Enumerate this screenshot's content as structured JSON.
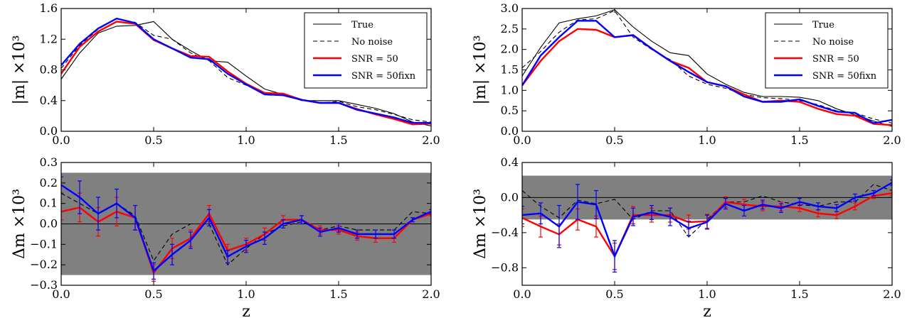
{
  "chart_data": [
    {
      "type": "line",
      "panel": "top-left",
      "xlabel": "",
      "ylabel": "|m| ×10³",
      "xlim": [
        0,
        2
      ],
      "ylim": [
        0,
        1.6
      ],
      "xticks": [
        "0.0",
        "0.5",
        "1.0",
        "1.5",
        "2.0"
      ],
      "yticks": [
        "0.0",
        "0.4",
        "0.8",
        "1.2",
        "1.6"
      ],
      "legend_position": "top-right",
      "legend": [
        "True",
        "No noise",
        "SNR = 50",
        "SNR = 50fixn"
      ],
      "series": [
        {
          "name": "True",
          "color": "#000000",
          "style": "solid",
          "x": [
            0,
            0.1,
            0.2,
            0.3,
            0.4,
            0.5,
            0.6,
            0.7,
            0.8,
            0.9,
            1.0,
            1.1,
            1.2,
            1.3,
            1.4,
            1.5,
            1.6,
            1.7,
            1.8,
            1.9,
            2.0
          ],
          "y": [
            0.68,
            1.02,
            1.28,
            1.37,
            1.38,
            1.43,
            1.2,
            1.05,
            0.92,
            0.9,
            0.72,
            0.55,
            0.48,
            0.4,
            0.4,
            0.4,
            0.35,
            0.3,
            0.23,
            0.12,
            0.07
          ]
        },
        {
          "name": "No noise",
          "color": "#000000",
          "style": "dashed",
          "x": [
            0,
            0.1,
            0.2,
            0.3,
            0.4,
            0.5,
            0.6,
            0.7,
            0.8,
            0.9,
            1.0,
            1.1,
            1.2,
            1.3,
            1.4,
            1.5,
            1.6,
            1.7,
            1.8,
            1.9,
            2.0
          ],
          "y": [
            0.82,
            1.12,
            1.33,
            1.47,
            1.42,
            1.25,
            1.2,
            1.02,
            0.92,
            0.7,
            0.6,
            0.5,
            0.47,
            0.41,
            0.37,
            0.39,
            0.32,
            0.28,
            0.22,
            0.15,
            0.12
          ]
        },
        {
          "name": "SNR = 50",
          "color": "#ff0000",
          "style": "solid",
          "x": [
            0,
            0.1,
            0.2,
            0.3,
            0.4,
            0.5,
            0.6,
            0.7,
            0.8,
            0.9,
            1.0,
            1.1,
            1.2,
            1.3,
            1.4,
            1.5,
            1.6,
            1.7,
            1.8,
            1.9,
            2.0
          ],
          "y": [
            0.75,
            1.1,
            1.3,
            1.43,
            1.4,
            1.19,
            1.08,
            0.98,
            0.97,
            0.78,
            0.62,
            0.5,
            0.49,
            0.41,
            0.37,
            0.37,
            0.29,
            0.22,
            0.16,
            0.09,
            0.1
          ]
        },
        {
          "name": "SNR = 50fixn",
          "color": "#0000ff",
          "style": "solid",
          "x": [
            0,
            0.1,
            0.2,
            0.3,
            0.4,
            0.5,
            0.6,
            0.7,
            0.8,
            0.9,
            1.0,
            1.1,
            1.2,
            1.3,
            1.4,
            1.5,
            1.6,
            1.7,
            1.8,
            1.9,
            2.0
          ],
          "y": [
            0.86,
            1.14,
            1.34,
            1.47,
            1.41,
            1.2,
            1.08,
            0.96,
            0.94,
            0.75,
            0.61,
            0.48,
            0.47,
            0.41,
            0.37,
            0.37,
            0.28,
            0.23,
            0.18,
            0.11,
            0.11
          ]
        }
      ]
    },
    {
      "type": "line",
      "panel": "top-right",
      "xlabel": "",
      "ylabel": "|m| ×10³",
      "xlim": [
        0,
        2
      ],
      "ylim": [
        0,
        3.0
      ],
      "xticks": [
        "0.0",
        "0.5",
        "1.0",
        "1.5",
        "2.0"
      ],
      "yticks": [
        "0.0",
        "0.5",
        "1.0",
        "1.5",
        "2.0",
        "2.5",
        "3.0"
      ],
      "legend_position": "top-right",
      "legend": [
        "True",
        "No noise",
        "SNR = 50",
        "SNR = 50fixn"
      ],
      "series": [
        {
          "name": "True",
          "color": "#000000",
          "style": "solid",
          "x": [
            0,
            0.1,
            0.2,
            0.3,
            0.4,
            0.5,
            0.6,
            0.7,
            0.8,
            0.9,
            1.0,
            1.1,
            1.2,
            1.3,
            1.4,
            1.5,
            1.6,
            1.7,
            1.8,
            1.9,
            2.0
          ],
          "y": [
            1.35,
            2.05,
            2.65,
            2.75,
            2.82,
            2.97,
            2.55,
            2.2,
            1.92,
            1.85,
            1.4,
            1.15,
            0.95,
            0.85,
            0.85,
            0.83,
            0.75,
            0.55,
            0.4,
            0.25,
            0.12
          ]
        },
        {
          "name": "No noise",
          "color": "#000000",
          "style": "dashed",
          "x": [
            0,
            0.1,
            0.2,
            0.3,
            0.4,
            0.5,
            0.6,
            0.7,
            0.8,
            0.9,
            1.0,
            1.1,
            1.2,
            1.3,
            1.4,
            1.5,
            1.6,
            1.7,
            1.8,
            1.9,
            2.0
          ],
          "y": [
            1.55,
            1.95,
            2.42,
            2.72,
            2.75,
            2.95,
            2.3,
            2.0,
            1.75,
            1.35,
            1.15,
            1.05,
            0.9,
            0.82,
            0.8,
            0.75,
            0.65,
            0.5,
            0.45,
            0.3,
            0.2
          ]
        },
        {
          "name": "SNR = 50",
          "color": "#ff0000",
          "style": "solid",
          "x": [
            0,
            0.1,
            0.2,
            0.3,
            0.4,
            0.5,
            0.6,
            0.7,
            0.8,
            0.9,
            1.0,
            1.1,
            1.2,
            1.3,
            1.4,
            1.5,
            1.6,
            1.7,
            1.8,
            1.9,
            2.0
          ],
          "y": [
            1.12,
            1.72,
            2.2,
            2.5,
            2.48,
            2.3,
            2.35,
            2.02,
            1.72,
            1.55,
            1.2,
            1.1,
            0.9,
            0.72,
            0.75,
            0.72,
            0.55,
            0.42,
            0.38,
            0.18,
            0.15
          ]
        },
        {
          "name": "SNR = 50fixn",
          "color": "#0000ff",
          "style": "solid",
          "x": [
            0,
            0.1,
            0.2,
            0.3,
            0.4,
            0.5,
            0.6,
            0.7,
            0.8,
            0.9,
            1.0,
            1.1,
            1.2,
            1.3,
            1.4,
            1.5,
            1.6,
            1.7,
            1.8,
            1.9,
            2.0
          ],
          "y": [
            1.12,
            1.85,
            2.3,
            2.7,
            2.7,
            2.3,
            2.35,
            2.02,
            1.72,
            1.45,
            1.2,
            1.1,
            0.85,
            0.72,
            0.72,
            0.78,
            0.62,
            0.48,
            0.45,
            0.2,
            0.28
          ]
        }
      ]
    },
    {
      "type": "line",
      "panel": "bottom-left",
      "xlabel": "z",
      "ylabel": "Δm ×10³",
      "xlim": [
        0,
        2
      ],
      "ylim": [
        -0.3,
        0.3
      ],
      "xticks": [
        "0.0",
        "0.5",
        "1.0",
        "1.5",
        "2.0"
      ],
      "yticks": [
        "-0.3",
        "-0.2",
        "-0.1",
        "0.0",
        "0.1",
        "0.2",
        "0.3"
      ],
      "band": [
        -0.25,
        0.25
      ],
      "band_color": "#808080",
      "zero_line": true,
      "series": [
        {
          "name": "No noise",
          "color": "#000000",
          "style": "dashed",
          "x": [
            0,
            0.1,
            0.2,
            0.3,
            0.4,
            0.5,
            0.6,
            0.7,
            0.8,
            0.9,
            1.0,
            1.1,
            1.2,
            1.3,
            1.4,
            1.5,
            1.6,
            1.7,
            1.8,
            1.9,
            2.0
          ],
          "y": [
            0.15,
            0.1,
            0.05,
            0.1,
            0.04,
            -0.18,
            -0.05,
            0.0,
            0.0,
            -0.2,
            -0.12,
            -0.05,
            -0.01,
            0.01,
            -0.03,
            -0.01,
            -0.03,
            -0.03,
            -0.03,
            0.06,
            0.05
          ]
        },
        {
          "name": "SNR = 50",
          "color": "#ff0000",
          "style": "solid",
          "x": [
            0,
            0.1,
            0.2,
            0.3,
            0.4,
            0.5,
            0.6,
            0.7,
            0.8,
            0.9,
            1.0,
            1.1,
            1.2,
            1.3,
            1.4,
            1.5,
            1.6,
            1.7,
            1.8,
            1.9,
            2.0
          ],
          "y": [
            0.06,
            0.08,
            0.01,
            0.06,
            0.03,
            -0.24,
            -0.12,
            -0.07,
            0.05,
            -0.13,
            -0.1,
            -0.05,
            0.02,
            0.02,
            -0.03,
            -0.03,
            -0.06,
            -0.07,
            -0.07,
            0.02,
            0.05
          ],
          "err": [
            0.04,
            0.07,
            0.07,
            0.07,
            0.06,
            0.04,
            0.05,
            0.04,
            0.04,
            0.03,
            0.03,
            0.03,
            0.02,
            0.02,
            0.02,
            0.02,
            0.02,
            0.02,
            0.02,
            0.01,
            0.01
          ]
        },
        {
          "name": "SNR = 50fixn",
          "color": "#0000ff",
          "style": "solid",
          "x": [
            0,
            0.1,
            0.2,
            0.3,
            0.4,
            0.5,
            0.6,
            0.7,
            0.8,
            0.9,
            1.0,
            1.1,
            1.2,
            1.3,
            1.4,
            1.5,
            1.6,
            1.7,
            1.8,
            1.9,
            2.0
          ],
          "y": [
            0.19,
            0.13,
            0.05,
            0.1,
            0.03,
            -0.23,
            -0.15,
            -0.08,
            0.03,
            -0.16,
            -0.11,
            -0.07,
            0.0,
            0.02,
            -0.04,
            -0.02,
            -0.05,
            -0.05,
            -0.05,
            0.02,
            0.06
          ],
          "err": [
            0.04,
            0.08,
            0.08,
            0.07,
            0.06,
            0.04,
            0.05,
            0.04,
            0.04,
            0.03,
            0.03,
            0.03,
            0.02,
            0.02,
            0.02,
            0.02,
            0.02,
            0.02,
            0.02,
            0.01,
            0.01
          ]
        }
      ]
    },
    {
      "type": "line",
      "panel": "bottom-right",
      "xlabel": "z",
      "ylabel": "Δm ×10³",
      "xlim": [
        0,
        2
      ],
      "ylim": [
        -1.0,
        0.4
      ],
      "xticks": [
        "0.0",
        "0.5",
        "1.0",
        "1.5",
        "2.0"
      ],
      "yticks": [
        "-0.8",
        "-0.4",
        "0.0",
        "0.4"
      ],
      "band": [
        -0.25,
        0.25
      ],
      "band_color": "#808080",
      "zero_line": true,
      "series": [
        {
          "name": "No noise",
          "color": "#000000",
          "style": "dashed",
          "x": [
            0,
            0.1,
            0.2,
            0.3,
            0.4,
            0.5,
            0.6,
            0.7,
            0.8,
            0.9,
            1.0,
            1.1,
            1.2,
            1.3,
            1.4,
            1.5,
            1.6,
            1.7,
            1.8,
            1.9,
            2.0
          ],
          "y": [
            0.08,
            -0.1,
            -0.23,
            -0.03,
            -0.07,
            -0.02,
            -0.25,
            -0.15,
            -0.15,
            -0.45,
            -0.25,
            -0.05,
            -0.05,
            0.02,
            -0.05,
            -0.08,
            -0.1,
            -0.05,
            -0.05,
            0.15,
            0.08
          ]
        },
        {
          "name": "SNR = 50",
          "color": "#ff0000",
          "style": "solid",
          "x": [
            0,
            0.1,
            0.2,
            0.3,
            0.4,
            0.5,
            0.6,
            0.7,
            0.8,
            0.9,
            1.0,
            1.1,
            1.2,
            1.3,
            1.4,
            1.5,
            1.6,
            1.7,
            1.8,
            1.9,
            2.0
          ],
          "y": [
            -0.23,
            -0.33,
            -0.42,
            -0.25,
            -0.33,
            -0.67,
            -0.2,
            -0.2,
            -0.2,
            -0.28,
            -0.27,
            -0.05,
            -0.08,
            -0.1,
            -0.1,
            -0.12,
            -0.18,
            -0.2,
            -0.1,
            0.02,
            0.05
          ],
          "err": [
            0.1,
            0.12,
            0.12,
            0.12,
            0.12,
            0.15,
            0.1,
            0.08,
            0.08,
            0.08,
            0.08,
            0.06,
            0.06,
            0.05,
            0.05,
            0.04,
            0.04,
            0.04,
            0.04,
            0.03,
            0.03
          ]
        },
        {
          "name": "SNR = 50fixn",
          "color": "#0000ff",
          "style": "solid",
          "x": [
            0,
            0.1,
            0.2,
            0.3,
            0.4,
            0.5,
            0.6,
            0.7,
            0.8,
            0.9,
            1.0,
            1.1,
            1.2,
            1.3,
            1.4,
            1.5,
            1.6,
            1.7,
            1.8,
            1.9,
            2.0
          ],
          "y": [
            -0.2,
            -0.18,
            -0.33,
            -0.05,
            -0.08,
            -0.67,
            -0.22,
            -0.17,
            -0.22,
            -0.35,
            -0.28,
            -0.07,
            -0.15,
            -0.08,
            -0.12,
            -0.05,
            -0.1,
            -0.12,
            0.0,
            0.05,
            0.17
          ],
          "err": [
            0.1,
            0.12,
            0.24,
            0.2,
            0.16,
            0.18,
            0.1,
            0.08,
            0.1,
            0.08,
            0.08,
            0.06,
            0.06,
            0.05,
            0.05,
            0.04,
            0.04,
            0.04,
            0.04,
            0.03,
            0.03
          ]
        }
      ]
    }
  ]
}
